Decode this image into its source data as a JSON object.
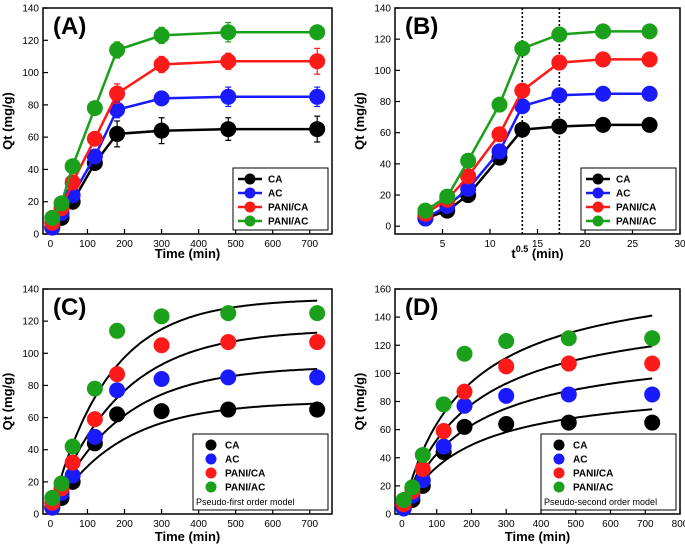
{
  "chart_data": [
    {
      "type": "line",
      "panel": "(A)",
      "xlabel": "Time (min)",
      "ylabel": "Qt (mg/g)",
      "xlim": [
        -20,
        760
      ],
      "ylim": [
        0,
        140
      ],
      "xticks": [
        0,
        100,
        200,
        300,
        400,
        500,
        600,
        700
      ],
      "yticks": [
        0,
        20,
        40,
        60,
        80,
        100,
        120,
        140
      ],
      "x": [
        5,
        30,
        60,
        120,
        180,
        300,
        480,
        720
      ],
      "series": [
        {
          "name": "CA",
          "color": "#000000",
          "values": [
            4,
            10,
            20,
            44,
            62,
            64,
            65,
            65
          ],
          "errors": [
            2,
            2,
            3,
            4,
            8,
            8,
            7,
            8
          ]
        },
        {
          "name": "AC",
          "color": "#1a1aff",
          "values": [
            4,
            13,
            24,
            48,
            77,
            84,
            85,
            85
          ],
          "errors": [
            2,
            2,
            3,
            4,
            5,
            4,
            6,
            6
          ]
        },
        {
          "name": "PANI/CA",
          "color": "#ff1a1a",
          "values": [
            7,
            16,
            32,
            59,
            87,
            105,
            107,
            107
          ],
          "errors": [
            2,
            2,
            3,
            4,
            6,
            5,
            5,
            8
          ]
        },
        {
          "name": "PANI/AC",
          "color": "#1aa01a",
          "values": [
            10,
            19,
            42,
            78,
            114,
            123,
            125,
            125
          ],
          "errors": [
            2,
            2,
            3,
            4,
            5,
            5,
            6,
            3
          ]
        }
      ]
    },
    {
      "type": "line",
      "panel": "(B)",
      "xlabel": "t0.5 (min)",
      "xlabel_base": "t",
      "xlabel_sup": "0.5",
      "xlabel_unit": " (min)",
      "ylabel": "Qt (mg/g)",
      "xlim": [
        0,
        30
      ],
      "ylim": [
        -5,
        140
      ],
      "xticks": [
        5,
        10,
        15,
        20,
        25,
        30
      ],
      "yticks": [
        0,
        20,
        40,
        60,
        80,
        100,
        120,
        140
      ],
      "x": [
        3.2,
        5.5,
        7.7,
        11.0,
        13.4,
        17.3,
        21.9,
        26.8
      ],
      "vlines": [
        13.4,
        17.3
      ],
      "series": [
        {
          "name": "CA",
          "color": "#000000",
          "values": [
            5,
            10,
            20,
            44,
            62,
            64,
            65,
            65
          ]
        },
        {
          "name": "AC",
          "color": "#1a1aff",
          "values": [
            5,
            13,
            24,
            48,
            77,
            84,
            85,
            85
          ]
        },
        {
          "name": "PANI/CA",
          "color": "#ff1a1a",
          "values": [
            8,
            17,
            32,
            59,
            87,
            105,
            107,
            107
          ]
        },
        {
          "name": "PANI/AC",
          "color": "#1aa01a",
          "values": [
            10,
            19,
            42,
            78,
            114,
            123,
            125,
            125
          ]
        }
      ]
    },
    {
      "type": "scatter",
      "panel": "(C)",
      "xlabel": "Time (min)",
      "ylabel": "Qt (mg/g)",
      "xlim": [
        -20,
        760
      ],
      "ylim": [
        0,
        140
      ],
      "xticks": [
        0,
        100,
        200,
        300,
        400,
        500,
        600,
        700
      ],
      "yticks": [
        0,
        20,
        40,
        60,
        80,
        100,
        120,
        140
      ],
      "model_label": "Pseudo-first order model",
      "x": [
        5,
        30,
        60,
        120,
        180,
        300,
        480,
        720
      ],
      "series": [
        {
          "name": "CA",
          "color": "#000000",
          "values": [
            4,
            10,
            20,
            44,
            62,
            64,
            65,
            65
          ],
          "fit": {
            "qe": 70,
            "k": 0.0055
          }
        },
        {
          "name": "AC",
          "color": "#1a1aff",
          "values": [
            4,
            13,
            24,
            48,
            77,
            84,
            85,
            85
          ],
          "fit": {
            "qe": 92,
            "k": 0.0055
          }
        },
        {
          "name": "PANI/CA",
          "color": "#ff1a1a",
          "values": [
            7,
            16,
            32,
            59,
            87,
            105,
            107,
            107
          ],
          "fit": {
            "qe": 115,
            "k": 0.0055
          }
        },
        {
          "name": "PANI/AC",
          "color": "#1aa01a",
          "values": [
            10,
            19,
            42,
            78,
            114,
            123,
            125,
            125
          ],
          "fit": {
            "qe": 134,
            "k": 0.0065
          }
        }
      ]
    },
    {
      "type": "scatter",
      "panel": "(D)",
      "xlabel": "Time (min)",
      "ylabel": "Qt (mg/g)",
      "xlim": [
        -20,
        800
      ],
      "ylim": [
        0,
        160
      ],
      "xticks": [
        0,
        100,
        200,
        300,
        400,
        500,
        600,
        700,
        800
      ],
      "yticks": [
        0,
        20,
        40,
        60,
        80,
        100,
        120,
        140,
        160
      ],
      "model_label": "Pseudo-second order model",
      "x": [
        5,
        30,
        60,
        120,
        180,
        300,
        480,
        720
      ],
      "series": [
        {
          "name": "CA",
          "color": "#000000",
          "values": [
            4,
            10,
            20,
            44,
            62,
            64,
            65,
            65
          ],
          "fit": {
            "qe": 93,
            "k": 6e-05
          }
        },
        {
          "name": "AC",
          "color": "#1a1aff",
          "values": [
            4,
            13,
            24,
            48,
            77,
            84,
            85,
            85
          ],
          "fit": {
            "qe": 121,
            "k": 4.5e-05
          }
        },
        {
          "name": "PANI/CA",
          "color": "#ff1a1a",
          "values": [
            7,
            16,
            32,
            59,
            87,
            105,
            107,
            107
          ],
          "fit": {
            "qe": 150,
            "k": 3.6e-05
          }
        },
        {
          "name": "PANI/AC",
          "color": "#1aa01a",
          "values": [
            10,
            19,
            42,
            78,
            114,
            123,
            125,
            125
          ],
          "fit": {
            "qe": 175,
            "k": 3.3e-05
          }
        }
      ]
    }
  ]
}
